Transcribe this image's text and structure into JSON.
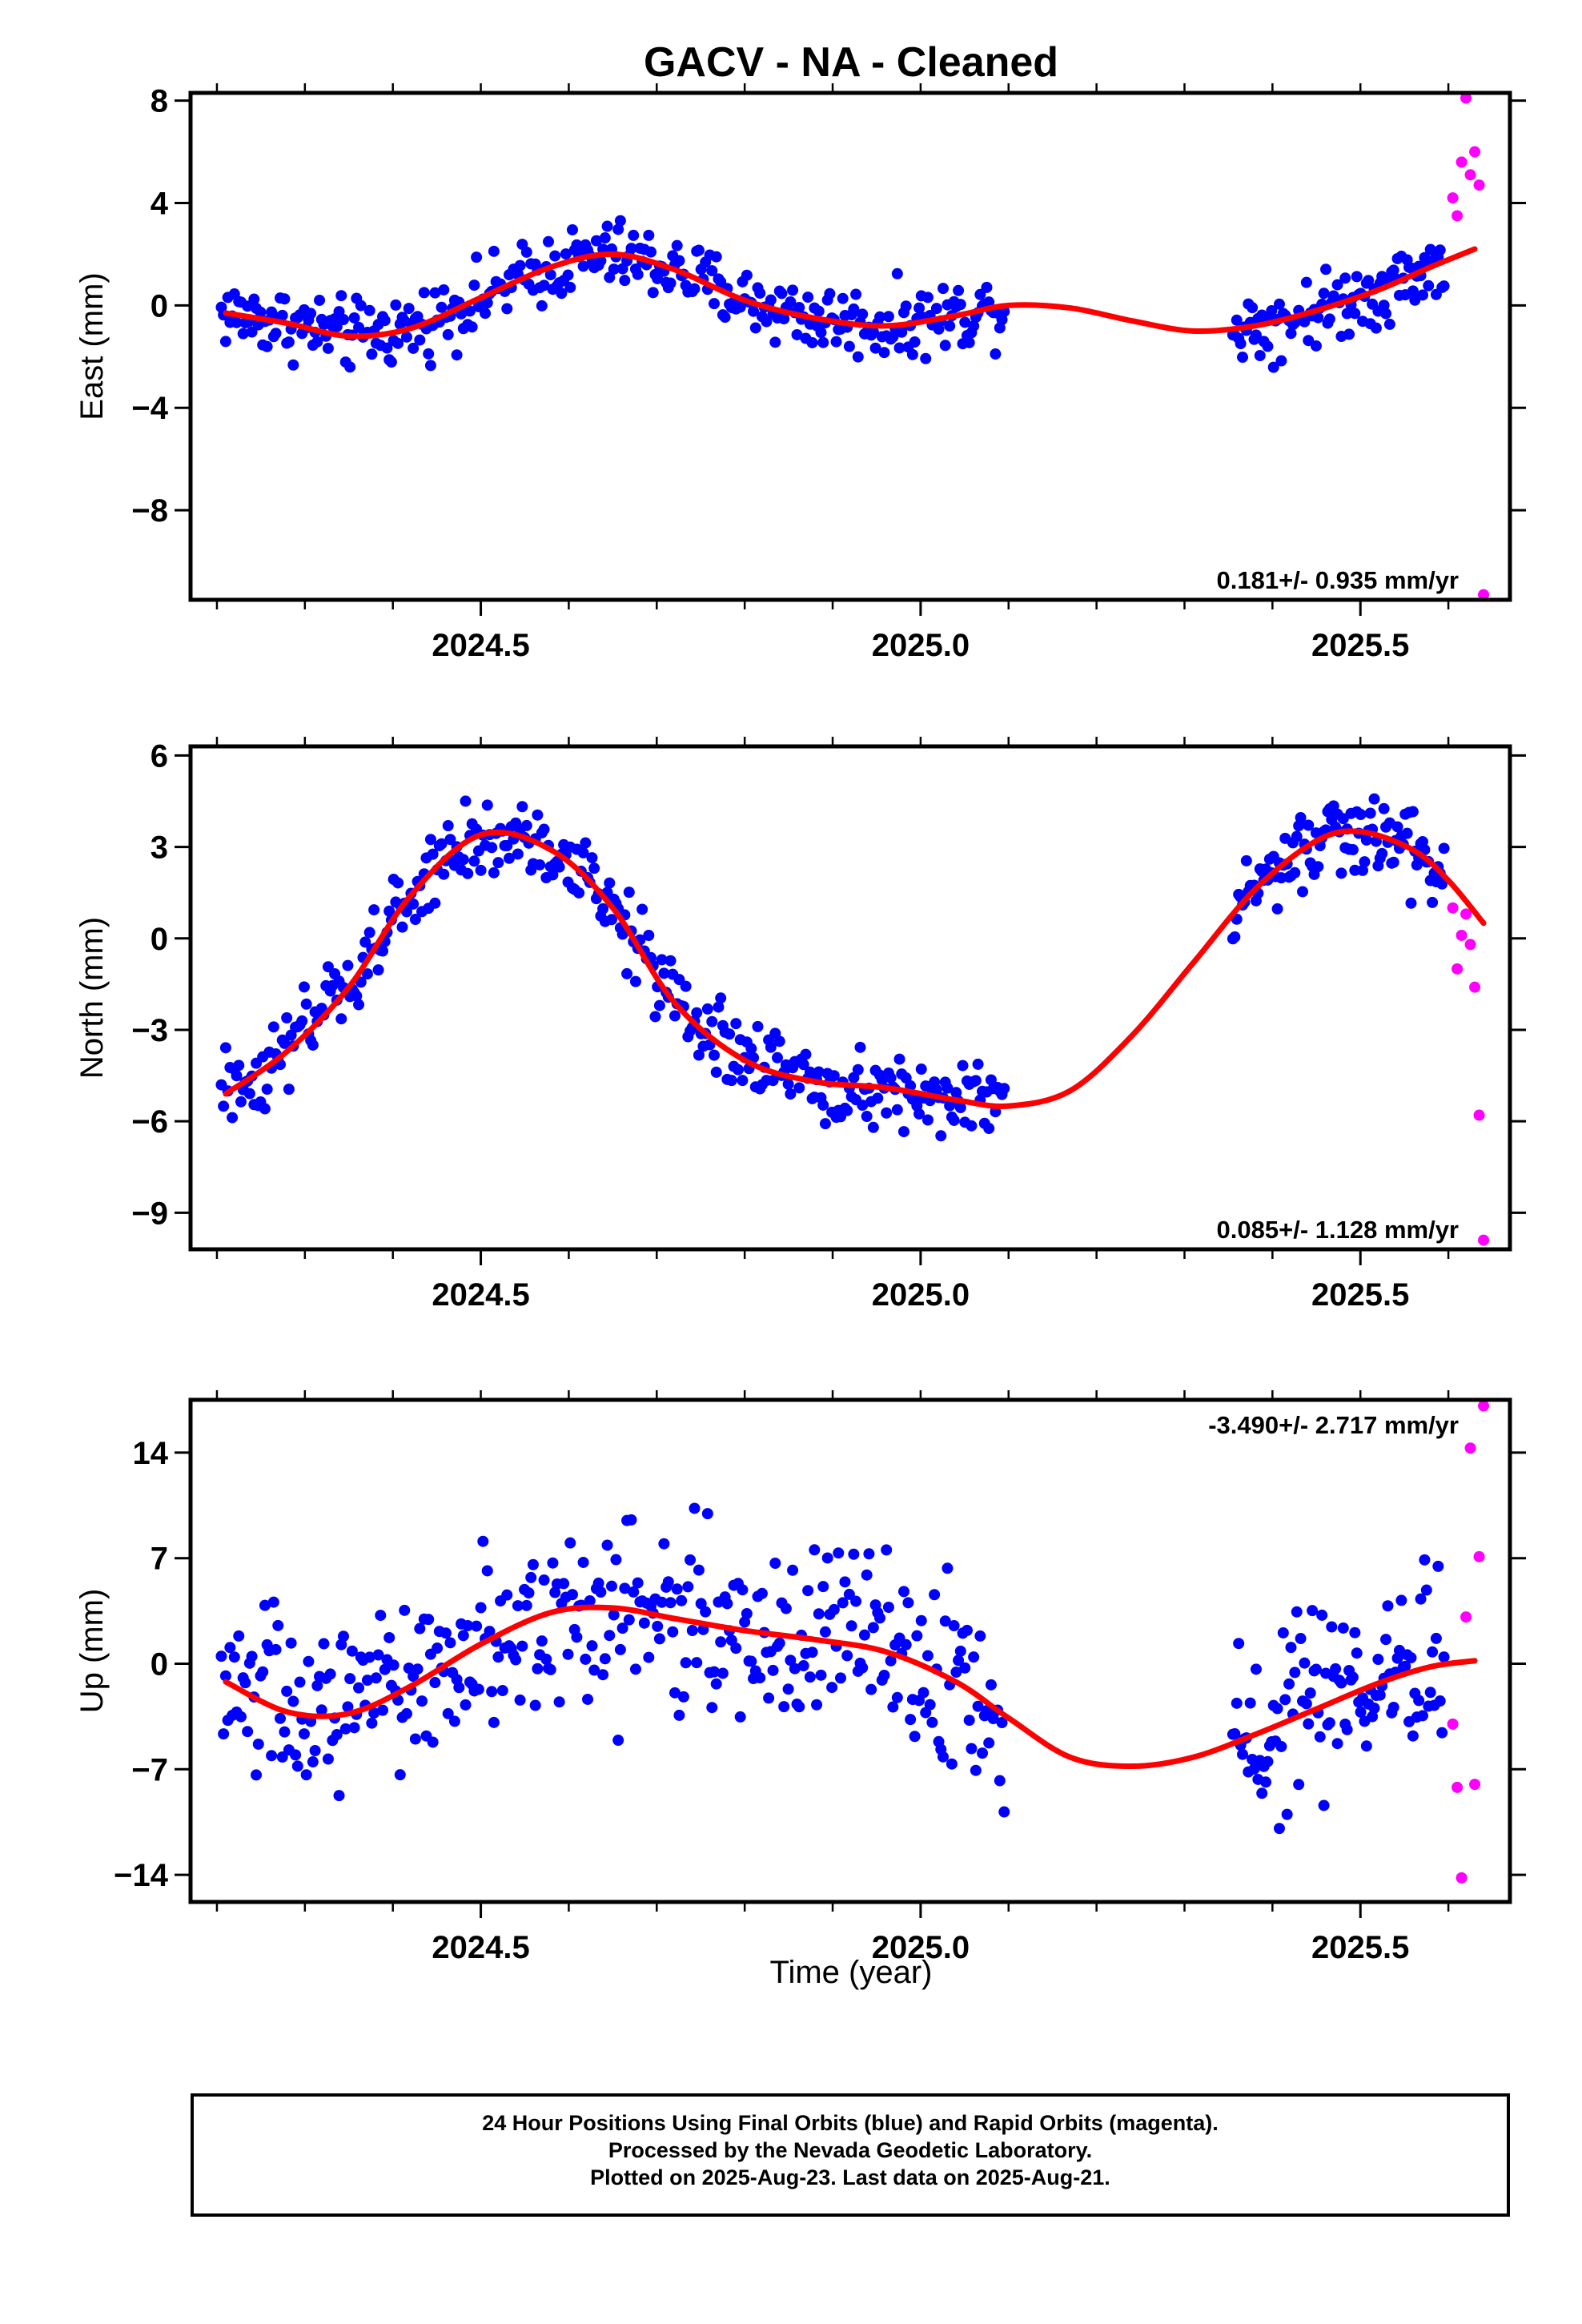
{
  "title": "GACV  - NA - Cleaned",
  "xlabel": "Time (year)",
  "footer": {
    "line1": "24 Hour Positions Using Final Orbits (blue) and Rapid Orbits (magenta).",
    "line2": "Processed by the Nevada Geodetic Laboratory.",
    "line3": "Plotted on 2025-Aug-23. Last data on 2025-Aug-21."
  },
  "colors": {
    "final": "#0000ff",
    "rapid": "#ff00ff",
    "fit": "#ff0000",
    "axis": "#000000"
  },
  "chart_data": [
    {
      "type": "scatter",
      "name": "east",
      "ylabel": "East (mm)",
      "rate_text": "0.181+/- 0.935 mm/yr",
      "rate_position": "bottom-right",
      "xlim": [
        2024.17,
        2025.67
      ],
      "ylim": [
        -11.5,
        8.3
      ],
      "yticks": [
        8,
        4,
        0,
        -4,
        -8
      ],
      "ytick_labels": [
        "8",
        "4",
        "0",
        "−4",
        "−8"
      ],
      "xticks": [
        2024.5,
        2025.0,
        2025.5
      ],
      "xtick_labels": [
        "2024.5",
        "2025.0",
        "2025.5"
      ],
      "fit": {
        "x": [
          2024.21,
          2024.28,
          2024.35,
          2024.42,
          2024.5,
          2024.58,
          2024.65,
          2024.72,
          2024.8,
          2024.88,
          2024.96,
          2025.04,
          2025.1,
          2025.17,
          2025.24,
          2025.31,
          2025.38,
          2025.45,
          2025.52,
          2025.58,
          2025.63
        ],
        "y": [
          -0.3,
          -0.7,
          -1.2,
          -0.9,
          0.3,
          1.5,
          2.0,
          1.4,
          0.2,
          -0.5,
          -0.8,
          -0.4,
          0.0,
          -0.1,
          -0.6,
          -1.0,
          -0.8,
          -0.2,
          0.6,
          1.5,
          2.2
        ]
      },
      "final": {
        "segments": [
          {
            "x0": 2024.205,
            "x1": 2025.095,
            "n": 360
          },
          {
            "x0": 2025.355,
            "x1": 2025.595,
            "n": 110
          }
        ],
        "scatter": 0.9
      },
      "rapid": {
        "x": [
          2025.605,
          2025.61,
          2025.615,
          2025.62,
          2025.625,
          2025.63,
          2025.635,
          2025.64
        ],
        "y": [
          4.2,
          3.5,
          5.6,
          8.1,
          5.1,
          6.0,
          4.7,
          -11.3
        ]
      }
    },
    {
      "type": "scatter",
      "name": "north",
      "ylabel": "North (mm)",
      "rate_text": "0.085+/- 1.128 mm/yr",
      "rate_position": "bottom-right",
      "xlim": [
        2024.17,
        2025.67
      ],
      "ylim": [
        -10.2,
        6.3
      ],
      "yticks": [
        6,
        3,
        0,
        -3,
        -6,
        -9
      ],
      "ytick_labels": [
        "6",
        "3",
        "0",
        "−3",
        "−6",
        "−9"
      ],
      "xticks": [
        2024.5,
        2025.0,
        2025.5
      ],
      "xtick_labels": [
        "2024.5",
        "2025.0",
        "2025.5"
      ],
      "fit": {
        "x": [
          2024.21,
          2024.28,
          2024.35,
          2024.42,
          2024.5,
          2024.58,
          2024.65,
          2024.72,
          2024.8,
          2024.88,
          2024.96,
          2025.04,
          2025.1,
          2025.17,
          2025.24,
          2025.31,
          2025.38,
          2025.45,
          2025.5,
          2025.56,
          2025.6,
          2025.64
        ],
        "y": [
          -5.1,
          -3.7,
          -1.6,
          1.4,
          3.4,
          2.9,
          1.0,
          -2.1,
          -4.0,
          -4.7,
          -4.9,
          -5.3,
          -5.5,
          -5.0,
          -3.2,
          -0.8,
          1.6,
          3.2,
          3.5,
          2.9,
          1.9,
          0.5
        ]
      },
      "final": {
        "segments": [
          {
            "x0": 2024.205,
            "x1": 2025.095,
            "n": 360
          },
          {
            "x0": 2025.355,
            "x1": 2025.595,
            "n": 110
          }
        ],
        "scatter": 0.9
      },
      "rapid": {
        "x": [
          2025.605,
          2025.61,
          2025.615,
          2025.62,
          2025.625,
          2025.63,
          2025.635,
          2025.64
        ],
        "y": [
          1.0,
          -1.0,
          0.1,
          0.8,
          -0.2,
          -1.6,
          -5.8,
          -9.9
        ]
      }
    },
    {
      "type": "scatter",
      "name": "up",
      "ylabel": "Up (mm)",
      "rate_text": "-3.490+/- 2.717 mm/yr",
      "rate_position": "top-right",
      "xlim": [
        2024.17,
        2025.67
      ],
      "ylim": [
        -15.8,
        17.5
      ],
      "yticks": [
        14,
        7,
        0,
        -7,
        -14
      ],
      "ytick_labels": [
        "14",
        "7",
        "0",
        "−7",
        "−14"
      ],
      "xticks": [
        2024.5,
        2025.0,
        2025.5
      ],
      "xtick_labels": [
        "2024.5",
        "2025.0",
        "2025.5"
      ],
      "fit": {
        "x": [
          2024.21,
          2024.28,
          2024.35,
          2024.42,
          2024.5,
          2024.58,
          2024.65,
          2024.72,
          2024.8,
          2024.88,
          2024.96,
          2025.04,
          2025.1,
          2025.17,
          2025.24,
          2025.31,
          2025.38,
          2025.45,
          2025.52,
          2025.58,
          2025.63
        ],
        "y": [
          -1.2,
          -3.2,
          -3.3,
          -1.5,
          1.3,
          3.4,
          3.7,
          3.0,
          2.2,
          1.6,
          0.8,
          -1.2,
          -3.6,
          -6.2,
          -6.8,
          -6.2,
          -4.7,
          -3.0,
          -1.3,
          -0.2,
          0.2
        ]
      },
      "final": {
        "segments": [
          {
            "x0": 2024.205,
            "x1": 2025.095,
            "n": 360
          },
          {
            "x0": 2025.355,
            "x1": 2025.595,
            "n": 110
          }
        ],
        "scatter": 4.2
      },
      "rapid": {
        "x": [
          2025.605,
          2025.61,
          2025.615,
          2025.62,
          2025.625,
          2025.63,
          2025.635,
          2025.64
        ],
        "y": [
          -4.0,
          -8.2,
          -14.2,
          3.1,
          14.3,
          -8.0,
          7.1,
          17.1
        ]
      }
    }
  ]
}
